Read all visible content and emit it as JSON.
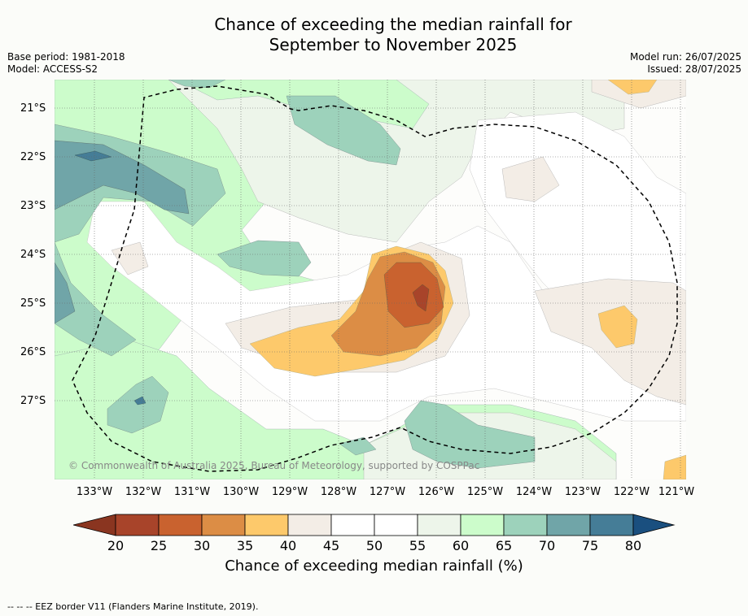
{
  "title": {
    "line1": "Chance of exceeding the median rainfall for",
    "line2": "September to November 2025"
  },
  "meta_left": {
    "base_period": "Base period: 1981-2018",
    "model": "Model: ACCESS-S2"
  },
  "meta_right": {
    "model_run": "Model run: 26/07/2025",
    "issued": "Issued: 28/07/2025"
  },
  "map": {
    "lat_labels": [
      "21°S",
      "22°S",
      "23°S",
      "24°S",
      "25°S",
      "26°S",
      "27°S"
    ],
    "lon_labels": [
      "133°W",
      "132°W",
      "131°W",
      "130°W",
      "129°W",
      "128°W",
      "127°W",
      "126°W",
      "125°W",
      "124°W",
      "123°W",
      "122°W",
      "121°W"
    ],
    "copyright": "© Commonwealth of Australia 2025, Bureau of Meteorology, supported by COSPPac"
  },
  "colorbar": {
    "ticks": [
      "20",
      "25",
      "30",
      "35",
      "40",
      "45",
      "50",
      "55",
      "60",
      "65",
      "70",
      "75",
      "80"
    ],
    "colors": [
      "#a8442a",
      "#c9622f",
      "#dc8d45",
      "#fdc96b",
      "#f3ede6",
      "#ffffff",
      "#ffffff",
      "#edf5ea",
      "#ccfccb",
      "#9dd2bb",
      "#70a5a8",
      "#457d97"
    ],
    "under_color": "#8a3520",
    "over_color": "#1a4f7f",
    "title": "Chance of exceeding median rainfall (%)"
  },
  "footer": "--  --  -- EEZ border V11 (Flanders Marine Institute, 2019)."
}
